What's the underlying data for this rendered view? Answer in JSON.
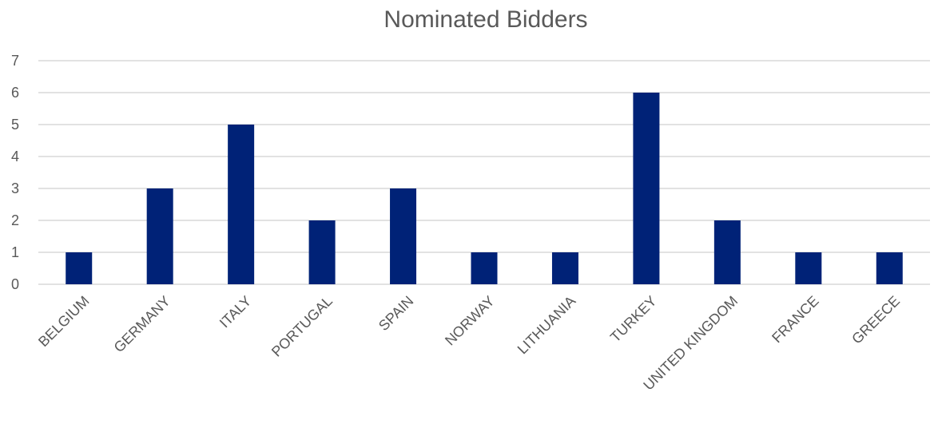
{
  "chart_data": {
    "type": "bar",
    "title": "Nominated Bidders",
    "xlabel": "",
    "ylabel": "",
    "categories": [
      "BELGIUM",
      "GERMANY",
      "ITALY",
      "PORTUGAL",
      "SPAIN",
      "NORWAY",
      "LITHUANIA",
      "TURKEY",
      "UNITED KINGDOM",
      "FRANCE",
      "GREECE"
    ],
    "values": [
      1,
      3,
      5,
      2,
      3,
      1,
      1,
      6,
      2,
      1,
      1
    ],
    "ylim": [
      0,
      7
    ],
    "yticks": [
      "0",
      "1",
      "2",
      "3",
      "4",
      "5",
      "6",
      "7"
    ],
    "grid": true,
    "legend": "none",
    "bar_color": "#002277",
    "gridline_color": "#d9d9d9",
    "text_color": "#595959"
  }
}
